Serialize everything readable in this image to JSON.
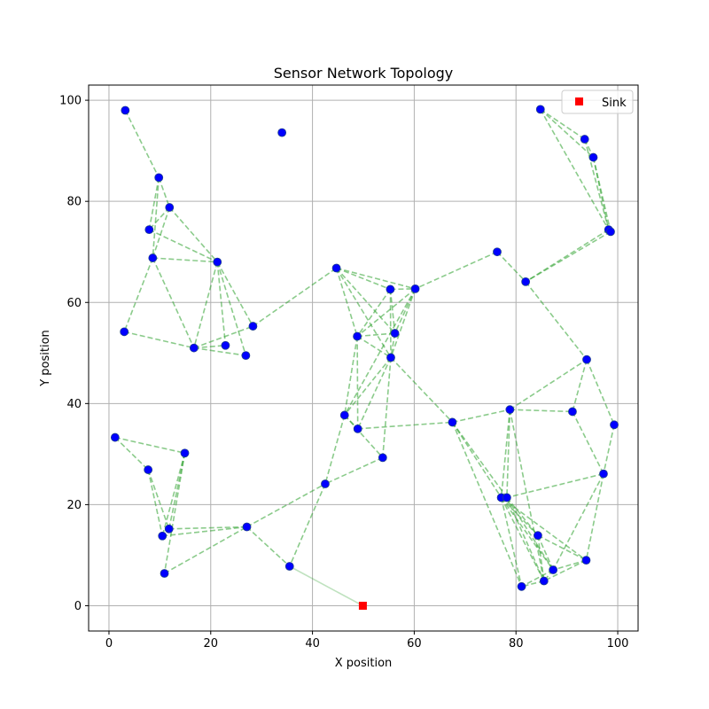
{
  "chart_data": {
    "type": "scatter",
    "title": "Sensor Network Topology",
    "xlabel": "X position",
    "ylabel": "Y position",
    "xlim": [
      -4,
      104
    ],
    "ylim": [
      -5,
      103
    ],
    "xticks": [
      0,
      20,
      40,
      60,
      80,
      100
    ],
    "yticks": [
      0,
      20,
      40,
      60,
      80,
      100
    ],
    "grid": true,
    "legend": {
      "placement": "top-right",
      "entries": [
        "Sink"
      ]
    },
    "colors": {
      "node": "#0000ff",
      "node_edge": "#1f3f8f",
      "sink": "#ff0000",
      "link": "#2ca02c",
      "grid": "#b0b0b0"
    },
    "sink": {
      "name": "Sink",
      "x": 49.9,
      "y": 0
    },
    "nodes": [
      [
        3.2,
        98.0
      ],
      [
        34.0,
        93.6
      ],
      [
        84.8,
        98.2
      ],
      [
        93.5,
        92.3
      ],
      [
        95.2,
        88.7
      ],
      [
        9.8,
        84.7
      ],
      [
        11.9,
        78.8
      ],
      [
        7.9,
        74.4
      ],
      [
        98.2,
        74.4
      ],
      [
        98.6,
        74.0
      ],
      [
        8.6,
        68.8
      ],
      [
        21.3,
        68.0
      ],
      [
        76.3,
        70.0
      ],
      [
        81.9,
        64.1
      ],
      [
        44.7,
        66.8
      ],
      [
        55.3,
        62.6
      ],
      [
        60.2,
        62.7
      ],
      [
        3.0,
        54.2
      ],
      [
        28.3,
        55.3
      ],
      [
        16.7,
        51.0
      ],
      [
        22.9,
        51.5
      ],
      [
        26.9,
        49.5
      ],
      [
        48.8,
        53.3
      ],
      [
        56.2,
        53.9
      ],
      [
        55.4,
        49.1
      ],
      [
        93.9,
        48.7
      ],
      [
        46.3,
        37.7
      ],
      [
        48.9,
        35.0
      ],
      [
        53.8,
        29.3
      ],
      [
        67.5,
        36.3
      ],
      [
        78.8,
        38.8
      ],
      [
        91.1,
        38.4
      ],
      [
        99.3,
        35.8
      ],
      [
        1.2,
        33.3
      ],
      [
        7.7,
        26.9
      ],
      [
        14.9,
        30.2
      ],
      [
        42.5,
        24.1
      ],
      [
        97.2,
        26.1
      ],
      [
        77.1,
        21.4
      ],
      [
        78.2,
        21.4
      ],
      [
        11.8,
        15.2
      ],
      [
        10.5,
        13.8
      ],
      [
        27.1,
        15.6
      ],
      [
        84.3,
        13.9
      ],
      [
        35.5,
        7.8
      ],
      [
        10.9,
        6.4
      ],
      [
        93.8,
        9.0
      ],
      [
        87.3,
        7.1
      ],
      [
        85.5,
        4.9
      ],
      [
        81.1,
        3.8
      ]
    ],
    "links": [
      [
        0,
        5
      ],
      [
        5,
        6
      ],
      [
        5,
        7
      ],
      [
        5,
        10
      ],
      [
        6,
        7
      ],
      [
        6,
        10
      ],
      [
        6,
        11
      ],
      [
        7,
        11
      ],
      [
        10,
        11
      ],
      [
        10,
        17
      ],
      [
        10,
        19
      ],
      [
        17,
        19
      ],
      [
        11,
        19
      ],
      [
        11,
        20
      ],
      [
        11,
        21
      ],
      [
        11,
        18
      ],
      [
        19,
        18
      ],
      [
        19,
        20
      ],
      [
        19,
        21
      ],
      [
        18,
        14
      ],
      [
        2,
        3
      ],
      [
        2,
        4
      ],
      [
        2,
        8
      ],
      [
        3,
        4
      ],
      [
        3,
        8
      ],
      [
        4,
        8
      ],
      [
        4,
        9
      ],
      [
        8,
        13
      ],
      [
        9,
        13
      ],
      [
        12,
        13
      ],
      [
        12,
        16
      ],
      [
        13,
        25
      ],
      [
        14,
        15
      ],
      [
        14,
        16
      ],
      [
        14,
        22
      ],
      [
        14,
        23
      ],
      [
        14,
        24
      ],
      [
        15,
        16
      ],
      [
        15,
        22
      ],
      [
        15,
        23
      ],
      [
        15,
        24
      ],
      [
        16,
        22
      ],
      [
        16,
        23
      ],
      [
        16,
        24
      ],
      [
        16,
        26
      ],
      [
        22,
        23
      ],
      [
        22,
        24
      ],
      [
        22,
        26
      ],
      [
        22,
        27
      ],
      [
        23,
        24
      ],
      [
        24,
        26
      ],
      [
        24,
        27
      ],
      [
        24,
        28
      ],
      [
        24,
        29
      ],
      [
        26,
        27
      ],
      [
        26,
        28
      ],
      [
        27,
        29
      ],
      [
        26,
        36
      ],
      [
        28,
        36
      ],
      [
        29,
        30
      ],
      [
        29,
        38
      ],
      [
        29,
        39
      ],
      [
        29,
        49
      ],
      [
        30,
        31
      ],
      [
        30,
        25
      ],
      [
        30,
        38
      ],
      [
        30,
        39
      ],
      [
        30,
        48
      ],
      [
        25,
        31
      ],
      [
        25,
        32
      ],
      [
        31,
        37
      ],
      [
        32,
        37
      ],
      [
        37,
        39
      ],
      [
        37,
        46
      ],
      [
        37,
        47
      ],
      [
        38,
        39
      ],
      [
        38,
        43
      ],
      [
        38,
        46
      ],
      [
        38,
        47
      ],
      [
        38,
        48
      ],
      [
        38,
        49
      ],
      [
        39,
        43
      ],
      [
        39,
        47
      ],
      [
        39,
        48
      ],
      [
        43,
        46
      ],
      [
        43,
        47
      ],
      [
        43,
        48
      ],
      [
        46,
        47
      ],
      [
        46,
        48
      ],
      [
        47,
        48
      ],
      [
        47,
        49
      ],
      [
        48,
        49
      ],
      [
        33,
        34
      ],
      [
        33,
        35
      ],
      [
        34,
        41
      ],
      [
        34,
        40
      ],
      [
        35,
        41
      ],
      [
        35,
        40
      ],
      [
        35,
        45
      ],
      [
        40,
        42
      ],
      [
        41,
        42
      ],
      [
        45,
        42
      ],
      [
        42,
        44
      ],
      [
        42,
        36
      ],
      [
        36,
        44
      ]
    ],
    "sink_link": [
      44
    ]
  }
}
